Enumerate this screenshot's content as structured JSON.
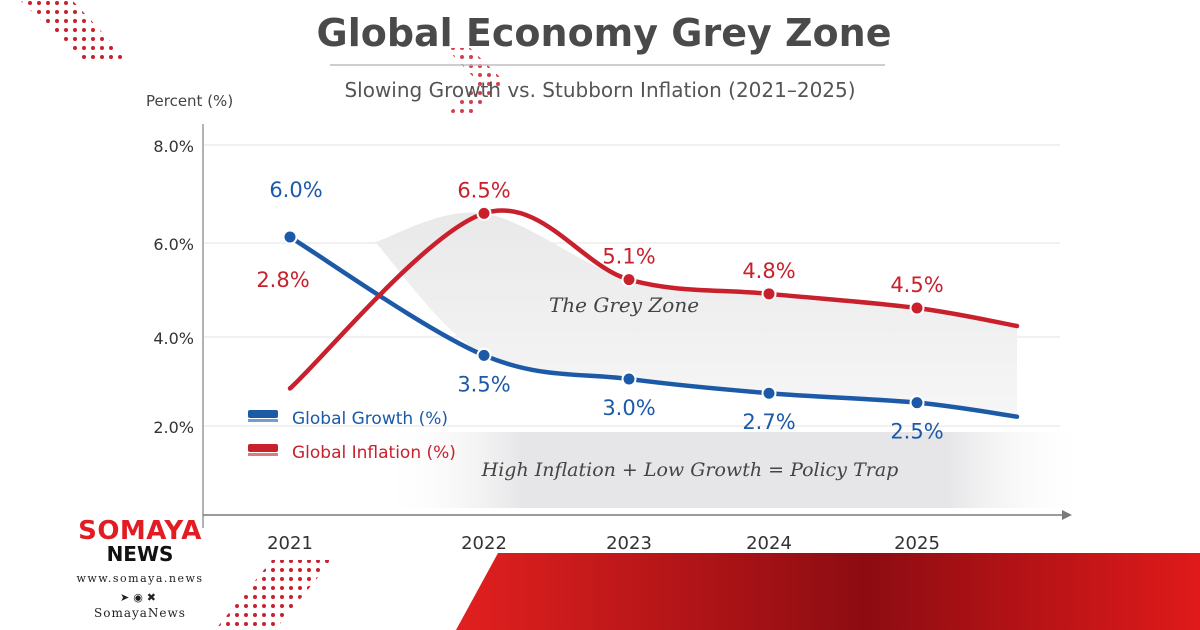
{
  "chart_data": {
    "type": "line",
    "title": "Global Economy Grey Zone",
    "subtitle": "Slowing Growth vs. Stubborn Inflation (2021–2025)",
    "ylabel": "Percent (%)",
    "xlabel": "",
    "categories": [
      "2021",
      "2022",
      "2023",
      "2024",
      "2025"
    ],
    "y_ticks": [
      "8.0%",
      "6.0%",
      "4.0%",
      "2.0%"
    ],
    "series": [
      {
        "name": "Global Growth (%)",
        "color": "#1c5aa8",
        "values": [
          6.0,
          3.5,
          3.0,
          2.7,
          2.5
        ],
        "labels": [
          "6.0%",
          "3.5%",
          "3.0%",
          "2.7%",
          "2.5%"
        ],
        "label_position": [
          "above",
          "below",
          "below",
          "below",
          "below"
        ]
      },
      {
        "name": "Global Inflation (%)",
        "color": "#c8202c",
        "values": [
          2.8,
          6.5,
          5.1,
          4.8,
          4.5
        ],
        "labels": [
          "2.8%",
          "6.5%",
          "5.1%",
          "4.8%",
          "4.5%"
        ],
        "label_position": [
          "left",
          "above",
          "above",
          "above",
          "above"
        ]
      }
    ],
    "annotations": [
      "The Grey Zone",
      "High Inflation + Low Growth = Policy Trap"
    ],
    "legend_position": "bottom-left",
    "grid": true
  },
  "brand": {
    "name": "SOMAYA",
    "sub": "NEWS",
    "site": "www.somaya.news",
    "icons": [
      "telegram-icon",
      "facebook-icon",
      "x-icon"
    ],
    "handle": "SomayaNews",
    "accent": "#e31b23"
  }
}
